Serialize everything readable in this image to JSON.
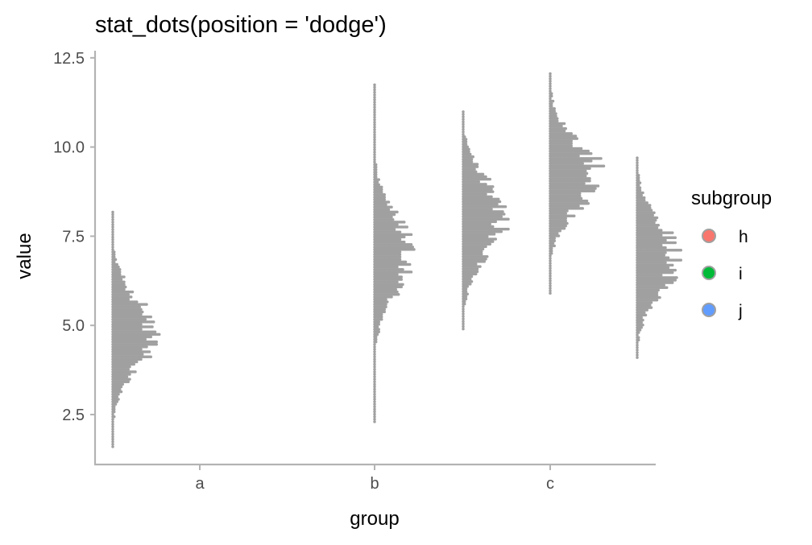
{
  "chart_data": {
    "type": "dots",
    "title": "stat_dots(position = 'dodge')",
    "xlabel": "group",
    "ylabel": "value",
    "categories": [
      "a",
      "b",
      "c"
    ],
    "ylim": [
      1.1,
      12.7
    ],
    "yticks": [
      2.5,
      5.0,
      7.5,
      10.0,
      12.5
    ],
    "ytick_labels": [
      "2.5",
      "5.0",
      "7.5",
      "10.0",
      "12.5"
    ],
    "grid": false,
    "dot_color": "#A0A0A0",
    "legend": {
      "title": "subgroup",
      "position": "right",
      "items": [
        {
          "label": "h",
          "color": "#F8766D"
        },
        {
          "label": "i",
          "color": "#00BA38"
        },
        {
          "label": "j",
          "color": "#619CFF"
        }
      ]
    },
    "series": [
      {
        "group": "a",
        "subgroup": "h",
        "min": 1.6,
        "max": 8.2,
        "peak": 4.8,
        "sd": 0.95,
        "peak_dots": 28
      },
      {
        "group": "b",
        "subgroup": "i",
        "min": 2.3,
        "max": 11.8,
        "peak": 7.0,
        "sd": 1.05,
        "peak_dots": 25
      },
      {
        "group": "c",
        "subgroup": "h",
        "min": 4.9,
        "max": 11.0,
        "peak": 8.0,
        "sd": 1.0,
        "peak_dots": 28
      },
      {
        "group": "c",
        "subgroup": "i",
        "min": 5.9,
        "max": 12.1,
        "peak": 9.2,
        "sd": 0.9,
        "peak_dots": 34
      },
      {
        "group": "c",
        "subgroup": "j",
        "min": 4.1,
        "max": 9.7,
        "peak": 6.9,
        "sd": 0.95,
        "peak_dots": 27
      }
    ]
  }
}
